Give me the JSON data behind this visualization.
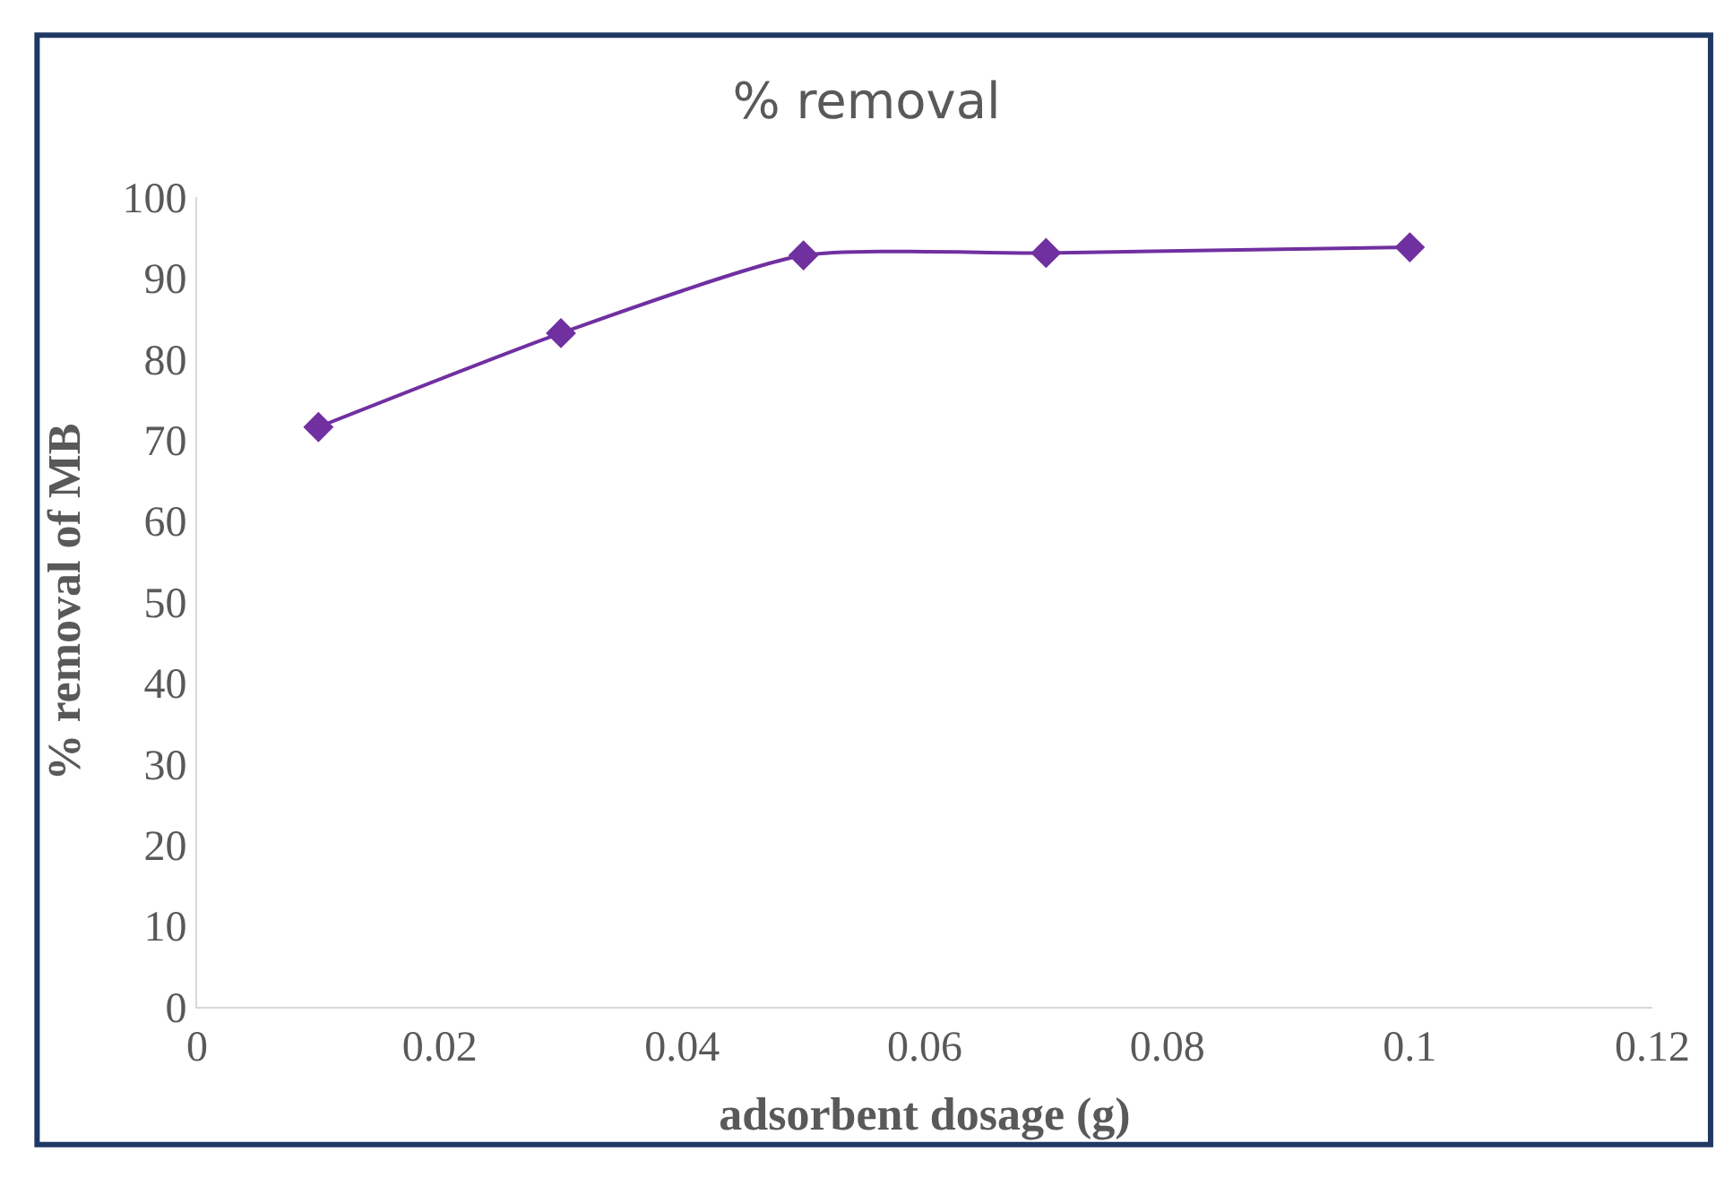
{
  "chart_data": {
    "type": "line",
    "title": "% removal",
    "xlabel": "adsorbent dosage (g)",
    "ylabel": "% removal of MB",
    "x": [
      0.01,
      0.03,
      0.05,
      0.07,
      0.1
    ],
    "series": [
      {
        "color": "#7030a0",
        "values": [
          71.6,
          83.2,
          92.8,
          93.1,
          93.8
        ]
      }
    ],
    "xlim": [
      0,
      0.12
    ],
    "xticks": [
      0,
      0.02,
      0.04,
      0.06,
      0.08,
      0.1,
      0.12
    ],
    "ylim": [
      0,
      100
    ],
    "yticks": [
      0,
      10,
      20,
      30,
      40,
      50,
      60,
      70,
      80,
      90,
      100
    ],
    "marker": "diamond",
    "line_style": "solid"
  }
}
